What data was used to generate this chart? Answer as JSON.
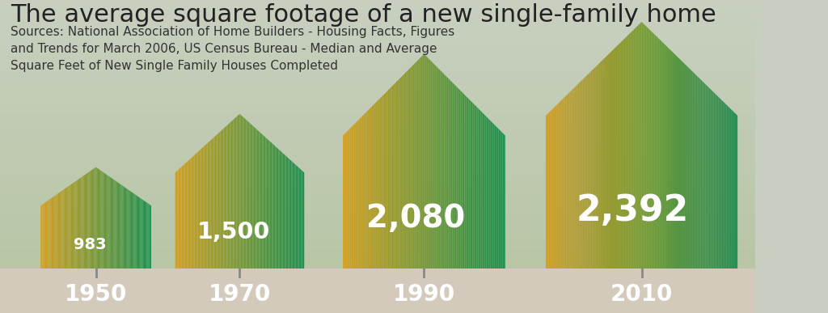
{
  "title": "The average square footage of a new single-family home",
  "sources": "Sources: National Association of Home Builders - Housing Facts, Figures\nand Trends for March 2006, US Census Bureau - Median and Average\nSquare Feet of New Single Family Houses Completed",
  "years": [
    "1950",
    "1970",
    "1990",
    "2010"
  ],
  "values": [
    "983",
    "1,500",
    "2,080",
    "2,392"
  ],
  "raw_values": [
    983,
    1500,
    2080,
    2392
  ],
  "bg_color": "#b5c4a0",
  "bg_top_color": "#c8cfc0",
  "strip_color": "#d4cabb",
  "house_left_color": "#d4a020",
  "house_right_color": "#1a9050",
  "title_color": "#222222",
  "source_color": "#333333",
  "value_color": "#ffffff",
  "year_color": "#ffffff",
  "title_fontsize": 22,
  "source_fontsize": 11,
  "year_fontsize": 20
}
